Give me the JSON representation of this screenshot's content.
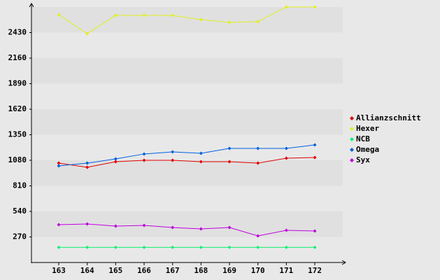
{
  "chart_data": {
    "type": "line",
    "categories": [
      "163",
      "164",
      "165",
      "166",
      "167",
      "168",
      "169",
      "170",
      "171",
      "172"
    ],
    "series": [
      {
        "name": "Allianzschnitt",
        "color": "#e00000",
        "values": [
          1050,
          1006,
          1065,
          1080,
          1080,
          1065,
          1065,
          1050,
          1102,
          1110
        ]
      },
      {
        "name": "Hexer",
        "color": "#e0f020",
        "values": [
          2619,
          2419,
          2611,
          2611,
          2611,
          2567,
          2537,
          2545,
          2700,
          2700
        ]
      },
      {
        "name": "NCB",
        "color": "#10f070",
        "values": [
          160,
          160,
          160,
          160,
          160,
          160,
          160,
          160,
          160,
          160
        ]
      },
      {
        "name": "Omega",
        "color": "#0060e0",
        "values": [
          1021,
          1050,
          1095,
          1147,
          1169,
          1154,
          1206,
          1206,
          1206,
          1243
        ]
      },
      {
        "name": "Syx",
        "color": "#c000e0",
        "values": [
          399,
          407,
          385,
          392,
          370,
          355,
          370,
          281,
          340,
          333
        ]
      }
    ],
    "ylim": [
      0,
      2700
    ],
    "yticks": [
      270,
      540,
      810,
      1080,
      1350,
      1620,
      1890,
      2160,
      2430
    ],
    "grid": "bands"
  }
}
